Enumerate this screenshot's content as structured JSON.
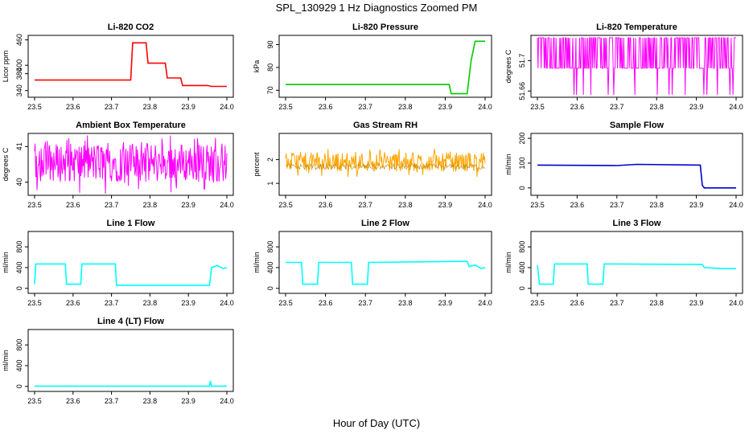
{
  "figure": {
    "title": "SPL_130929  1 Hz Diagnostics Zoomed PM",
    "xlabel": "Hour of Day (UTC)"
  },
  "chart_data": [
    {
      "type": "line",
      "title": "Li-820 CO2",
      "ylabel": "Licor ppm",
      "color": "#ff0000",
      "xlim": [
        23.5,
        24.0
      ],
      "ylim": [
        330,
        465
      ],
      "xticks": [
        "23.5",
        "23.6",
        "23.7",
        "23.8",
        "23.9",
        "24.0"
      ],
      "yticks": [
        340,
        380,
        400,
        460
      ],
      "x": [
        23.5,
        23.75,
        23.755,
        23.79,
        23.795,
        23.84,
        23.845,
        23.88,
        23.885,
        23.95,
        23.96,
        24.0
      ],
      "y": [
        365,
        365,
        453,
        453,
        405,
        405,
        370,
        370,
        352,
        352,
        350,
        350
      ]
    },
    {
      "type": "line",
      "title": "Li-820 Pressure",
      "ylabel": "kPa",
      "color": "#00cc00",
      "xlim": [
        23.5,
        24.0
      ],
      "ylim": [
        68,
        93
      ],
      "xticks": [
        "23.5",
        "23.6",
        "23.7",
        "23.8",
        "23.9",
        "24.0"
      ],
      "yticks": [
        70,
        80,
        90
      ],
      "x": [
        23.5,
        23.91,
        23.915,
        23.955,
        23.965,
        23.975,
        24.0
      ],
      "y": [
        72.5,
        72.5,
        68.5,
        68.5,
        83,
        91.5,
        91.5
      ]
    },
    {
      "type": "line",
      "title": "Li-820 Temperature",
      "ylabel": "degrees C",
      "color": "#ff00ff",
      "xlim": [
        23.5,
        24.0
      ],
      "ylim": [
        51.655,
        51.73
      ],
      "xticks": [
        "23.5",
        "23.6",
        "23.7",
        "23.8",
        "23.9",
        "24.0"
      ],
      "yticks": [
        51.66,
        51.7
      ],
      "x": [
        23.5,
        24.0
      ],
      "y": [
        51.69,
        51.73
      ]
    },
    {
      "type": "line",
      "title": "Ambient Box Temperature",
      "ylabel": "degrees C",
      "color": "#ff00ff",
      "xlim": [
        23.5,
        24.0
      ],
      "ylim": [
        39.7,
        41.3
      ],
      "xticks": [
        "23.5",
        "23.6",
        "23.7",
        "23.8",
        "23.9",
        "24.0"
      ],
      "yticks": [
        40,
        41
      ],
      "x": [
        23.5,
        24.0
      ],
      "y": [
        40.0,
        41.1
      ]
    },
    {
      "type": "line",
      "title": "Gas Stream RH",
      "ylabel": "percent",
      "color": "#ffa500",
      "xlim": [
        23.5,
        24.0
      ],
      "ylim": [
        0.6,
        3.0
      ],
      "xticks": [
        "23.5",
        "23.6",
        "23.7",
        "23.8",
        "23.9",
        "24.0"
      ],
      "yticks": [
        1.0,
        2.0
      ],
      "x": [
        23.5,
        24.0
      ],
      "y": [
        1.5,
        2.3
      ]
    },
    {
      "type": "line",
      "title": "Sample Flow",
      "ylabel": "ml/min",
      "color": "#0000cc",
      "xlim": [
        23.5,
        24.0
      ],
      "ylim": [
        -20,
        210
      ],
      "xticks": [
        "23.5",
        "23.6",
        "23.7",
        "23.8",
        "23.9",
        "24.0"
      ],
      "yticks": [
        0,
        100,
        200
      ],
      "x": [
        23.5,
        23.7,
        23.75,
        23.91,
        23.915,
        23.92,
        24.0
      ],
      "y": [
        92,
        90,
        95,
        92,
        10,
        0,
        0
      ]
    },
    {
      "type": "line",
      "title": "Line 1 Flow",
      "ylabel": "ml/min",
      "color": "#00ffff",
      "xlim": [
        23.5,
        24.0
      ],
      "ylim": [
        -50,
        1050
      ],
      "xticks": [
        "23.5",
        "23.6",
        "23.7",
        "23.8",
        "23.9",
        "24.0"
      ],
      "yticks": [
        0,
        400,
        800
      ],
      "x": [
        23.5,
        23.503,
        23.58,
        23.583,
        23.62,
        23.623,
        23.71,
        23.713,
        23.955,
        23.96,
        23.975,
        23.99,
        24.0
      ],
      "y": [
        80,
        470,
        470,
        80,
        80,
        470,
        470,
        60,
        60,
        400,
        440,
        380,
        400
      ]
    },
    {
      "type": "line",
      "title": "Line 2 Flow",
      "ylabel": "ml/min",
      "color": "#00ffff",
      "xlim": [
        23.5,
        24.0
      ],
      "ylim": [
        -50,
        1050
      ],
      "xticks": [
        "23.5",
        "23.6",
        "23.7",
        "23.8",
        "23.9",
        "24.0"
      ],
      "yticks": [
        0,
        400,
        800
      ],
      "x": [
        23.5,
        23.54,
        23.543,
        23.58,
        23.583,
        23.665,
        23.668,
        23.705,
        23.708,
        23.955,
        23.96,
        23.975,
        23.99,
        24.0
      ],
      "y": [
        500,
        500,
        80,
        80,
        500,
        500,
        80,
        80,
        500,
        520,
        420,
        450,
        380,
        400
      ]
    },
    {
      "type": "line",
      "title": "Line 3 Flow",
      "ylabel": "ml/min",
      "color": "#00ffff",
      "xlim": [
        23.5,
        24.0
      ],
      "ylim": [
        -50,
        1050
      ],
      "xticks": [
        "23.5",
        "23.6",
        "23.7",
        "23.8",
        "23.9",
        "24.0"
      ],
      "yticks": [
        0,
        400,
        800
      ],
      "x": [
        23.5,
        23.505,
        23.54,
        23.543,
        23.625,
        23.628,
        23.665,
        23.668,
        23.915,
        23.92,
        23.97,
        24.0
      ],
      "y": [
        450,
        80,
        80,
        470,
        470,
        80,
        80,
        470,
        460,
        400,
        380,
        380
      ]
    },
    {
      "type": "line",
      "title": "Line 4 (LT) Flow",
      "ylabel": "ml/min",
      "color": "#00ffff",
      "xlim": [
        23.5,
        24.0
      ],
      "ylim": [
        -50,
        1050
      ],
      "xticks": [
        "23.5",
        "23.6",
        "23.7",
        "23.8",
        "23.9",
        "24.0"
      ],
      "yticks": [
        0,
        400,
        800
      ],
      "x": [
        23.5,
        23.955,
        23.957,
        23.96,
        24.0
      ],
      "y": [
        5,
        5,
        110,
        5,
        5
      ]
    }
  ]
}
